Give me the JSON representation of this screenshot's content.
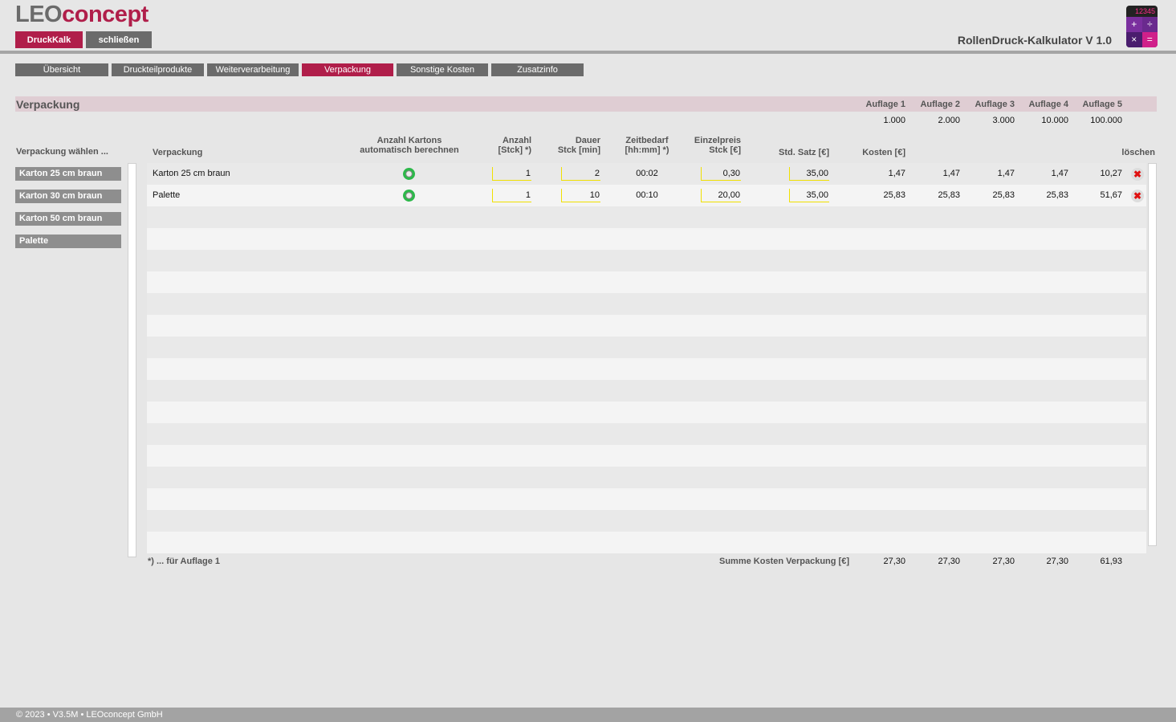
{
  "header": {
    "logo_left": "LEO",
    "logo_right": "concept",
    "app_title": "RollenDruck-Kalkulator V 1.0",
    "calc_display": "12345",
    "buttons": [
      {
        "label": "DruckKalk",
        "color": "#b01e4a"
      },
      {
        "label": "schließen",
        "color": "#6b6b6b"
      }
    ]
  },
  "tabs": [
    {
      "label": "Übersicht"
    },
    {
      "label": "Druckteilprodukte"
    },
    {
      "label": "Weiterverarbeitung"
    },
    {
      "label": "Verpackung",
      "active": true
    },
    {
      "label": "Sonstige Kosten"
    },
    {
      "label": "Zusatzinfo"
    }
  ],
  "section": {
    "title": "Verpackung",
    "auflagen": [
      "Auflage 1",
      "Auflage 2",
      "Auflage 3",
      "Auflage 4",
      "Auflage 5"
    ],
    "quantities": [
      "1.000",
      "2.000",
      "3.000",
      "10.000",
      "100.000"
    ]
  },
  "sidebar": {
    "title": "Verpackung wählen ...",
    "items": [
      "Karton 25 cm braun",
      "Karton 30 cm braun",
      "Karton 50 cm braun",
      "Palette"
    ]
  },
  "columns": {
    "verpackung": "Verpackung",
    "auto1": "Anzahl Kartons",
    "auto2": "automatisch berechnen",
    "anzahl1": "Anzahl",
    "anzahl2": "[Stck] *)",
    "dauer1": "Dauer",
    "dauer2": "Stck [min]",
    "zeit1": "Zeitbedarf",
    "zeit2": "[hh:mm] *)",
    "preis1": "Einzelpreis",
    "preis2": "Stck [€]",
    "satz": "Std. Satz [€]",
    "kosten": "Kosten [€]",
    "loeschen": "löschen"
  },
  "rows": [
    {
      "name": "Karton 25 cm braun",
      "anzahl": "1",
      "dauer": "2",
      "zeit": "00:02",
      "preis": "0,30",
      "satz": "35,00",
      "kosten": [
        "1,47",
        "1,47",
        "1,47",
        "1,47",
        "10,27"
      ]
    },
    {
      "name": "Palette",
      "anzahl": "1",
      "dauer": "10",
      "zeit": "00:10",
      "preis": "20,00",
      "satz": "35,00",
      "kosten": [
        "25,83",
        "25,83",
        "25,83",
        "25,83",
        "51,67"
      ]
    }
  ],
  "summary": {
    "note": "*) ... für Auflage 1",
    "label": "Summe Kosten Verpackung [€]",
    "values": [
      "27,30",
      "27,30",
      "27,30",
      "27,30",
      "61,93"
    ]
  },
  "footer": {
    "text": "© 2023 • V3.5M • LEOconcept GmbH"
  },
  "colors": {
    "accent": "#b01e4a",
    "tab_inactive": "#6b6b6b",
    "band": "#dfcdd3"
  }
}
